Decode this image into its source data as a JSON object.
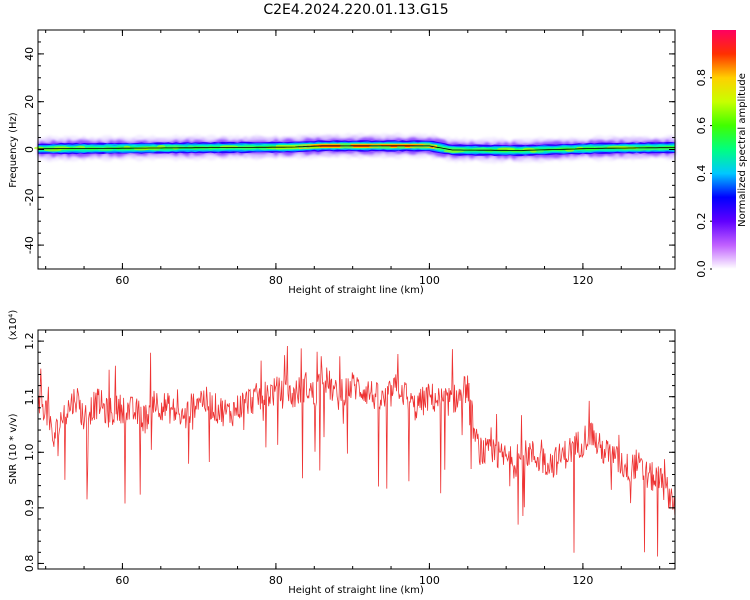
{
  "title": "C2E4.2024.220.01.13.G15",
  "chart_data": [
    {
      "type": "heatmap",
      "xlabel": "Height of straight line (km)",
      "ylabel": "Frequency (Hz)",
      "xlim": [
        49,
        132
      ],
      "ylim": [
        -50,
        50
      ],
      "xticks": [
        60,
        80,
        100,
        120
      ],
      "yticks": [
        -40,
        -20,
        0,
        20,
        40
      ],
      "band_center_hz": [
        [
          49,
          0.3
        ],
        [
          82,
          1.0
        ],
        [
          86,
          1.5
        ],
        [
          100,
          1.5
        ],
        [
          103,
          -0.2
        ],
        [
          112,
          -0.4
        ],
        [
          122,
          0.5
        ],
        [
          132,
          0.8
        ]
      ],
      "colorbar": {
        "label": "Normalized spectral amplitude",
        "range": [
          0.0,
          1.0
        ],
        "ticks": [
          "0.0",
          "0.2",
          "0.4",
          "0.6",
          "0.8"
        ],
        "colors": [
          "#ffffff",
          "#c060ff",
          "#6000ff",
          "#0000ff",
          "#00c8ff",
          "#00ff80",
          "#40ff00",
          "#c8ff00",
          "#ffd000",
          "#ff3000",
          "#ff0060"
        ]
      }
    },
    {
      "type": "line",
      "xlabel": "Height of straight line (km)",
      "ylabel": "SNR (10 * v/v)",
      "y_scale_note": "(x10⁴)",
      "xlim": [
        49,
        132
      ],
      "ylim": [
        0.79,
        1.22
      ],
      "xticks": [
        60,
        80,
        100,
        120
      ],
      "yticks": [
        "0.8",
        "0.9",
        "1.0",
        "1.1",
        "1.2"
      ],
      "series": [
        {
          "color": "#ee3333",
          "x": [
            49,
            50,
            51,
            52,
            53,
            54,
            55,
            56,
            57,
            58,
            60,
            62,
            63,
            64,
            66,
            68,
            70,
            72,
            74,
            76,
            78,
            80,
            82,
            84,
            85,
            86,
            88,
            90,
            92,
            94,
            96,
            98,
            100,
            102,
            104,
            105,
            106,
            107,
            110,
            111,
            113,
            114,
            116,
            118,
            120,
            121,
            122,
            124,
            126,
            127,
            128,
            130,
            132
          ],
          "y": [
            1.1,
            1.08,
            1.02,
            1.06,
            1.08,
            1.1,
            1.06,
            1.08,
            1.09,
            1.07,
            1.08,
            1.07,
            1.06,
            1.09,
            1.08,
            1.06,
            1.1,
            1.08,
            1.07,
            1.09,
            1.1,
            1.11,
            1.1,
            1.12,
            1.1,
            1.14,
            1.1,
            1.12,
            1.11,
            1.09,
            1.12,
            1.08,
            1.1,
            1.09,
            1.1,
            1.12,
            1.02,
            1.0,
            0.99,
            0.98,
            1.0,
            0.99,
            0.98,
            1.0,
            1.02,
            1.04,
            1.01,
            0.99,
            0.97,
            0.98,
            0.96,
            0.95,
            0.91
          ]
        }
      ]
    }
  ]
}
